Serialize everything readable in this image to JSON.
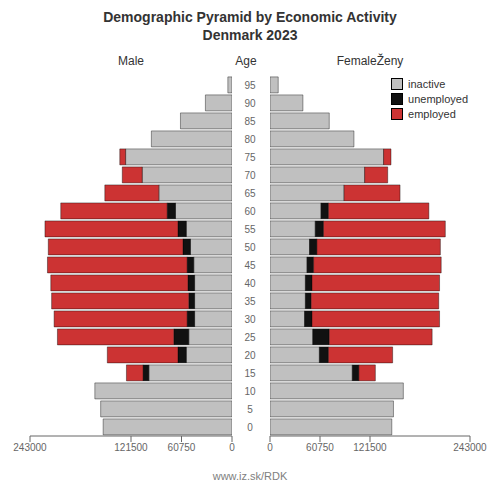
{
  "chart_data": [
    {
      "type": "bar",
      "title": "Demographic Pyramid by Economic Activity\nDenmark 2023",
      "orientation": "horizontal",
      "stacked": true,
      "grid": false,
      "x_label": "Male",
      "y_label": "Age",
      "categories": [
        0,
        5,
        10,
        15,
        20,
        25,
        30,
        35,
        40,
        45,
        50,
        55,
        60,
        65,
        70,
        75,
        80,
        85,
        90,
        95
      ],
      "series": [
        {
          "name": "inactive",
          "color": "#c0c0c0",
          "values": [
            155000,
            158000,
            165000,
            100000,
            55000,
            52000,
            45000,
            45000,
            45000,
            46000,
            50000,
            55000,
            68000,
            88000,
            108000,
            128000,
            97000,
            62000,
            32000,
            5000
          ]
        },
        {
          "name": "unemployed",
          "color": "#111111",
          "values": [
            0,
            0,
            0,
            7000,
            10000,
            18000,
            9000,
            7000,
            8000,
            8000,
            9000,
            10000,
            10000,
            0,
            0,
            0,
            0,
            0,
            0,
            0
          ]
        },
        {
          "name": "employed",
          "color": "#cc3333",
          "values": [
            0,
            0,
            0,
            20000,
            85000,
            140000,
            160000,
            165000,
            165000,
            168000,
            162000,
            160000,
            128000,
            65000,
            24000,
            7000,
            0,
            0,
            0,
            0
          ]
        }
      ],
      "xlim": [
        243000,
        0
      ],
      "xticks": [
        243000,
        121500,
        60750,
        0
      ],
      "annotations": [
        "www.iz.sk/RDK"
      ]
    },
    {
      "type": "bar",
      "orientation": "horizontal",
      "stacked": true,
      "grid": false,
      "x_label": "FemaleŽeny",
      "categories": [
        0,
        5,
        10,
        15,
        20,
        25,
        30,
        35,
        40,
        45,
        50,
        55,
        60,
        65,
        70,
        75,
        80,
        85,
        90,
        95
      ],
      "series": [
        {
          "name": "inactive",
          "color": "#c0c0c0",
          "values": [
            148000,
            150000,
            162000,
            100000,
            60000,
            52000,
            42000,
            43000,
            43000,
            45000,
            48000,
            55000,
            62000,
            90000,
            115000,
            138000,
            102000,
            72000,
            40000,
            10000
          ]
        },
        {
          "name": "unemployed",
          "color": "#111111",
          "values": [
            0,
            0,
            0,
            8000,
            11000,
            20000,
            9000,
            7000,
            8000,
            8000,
            9000,
            10000,
            9000,
            0,
            0,
            0,
            0,
            0,
            0,
            0
          ]
        },
        {
          "name": "employed",
          "color": "#cc3333",
          "values": [
            0,
            0,
            0,
            20000,
            78000,
            125000,
            155000,
            155000,
            155000,
            155000,
            150000,
            148000,
            122000,
            68000,
            28000,
            9000,
            0,
            0,
            0,
            0
          ]
        }
      ],
      "xlim": [
        0,
        243000
      ],
      "xticks": [
        0,
        60750,
        121500,
        243000
      ],
      "legend": "upper right"
    }
  ]
}
